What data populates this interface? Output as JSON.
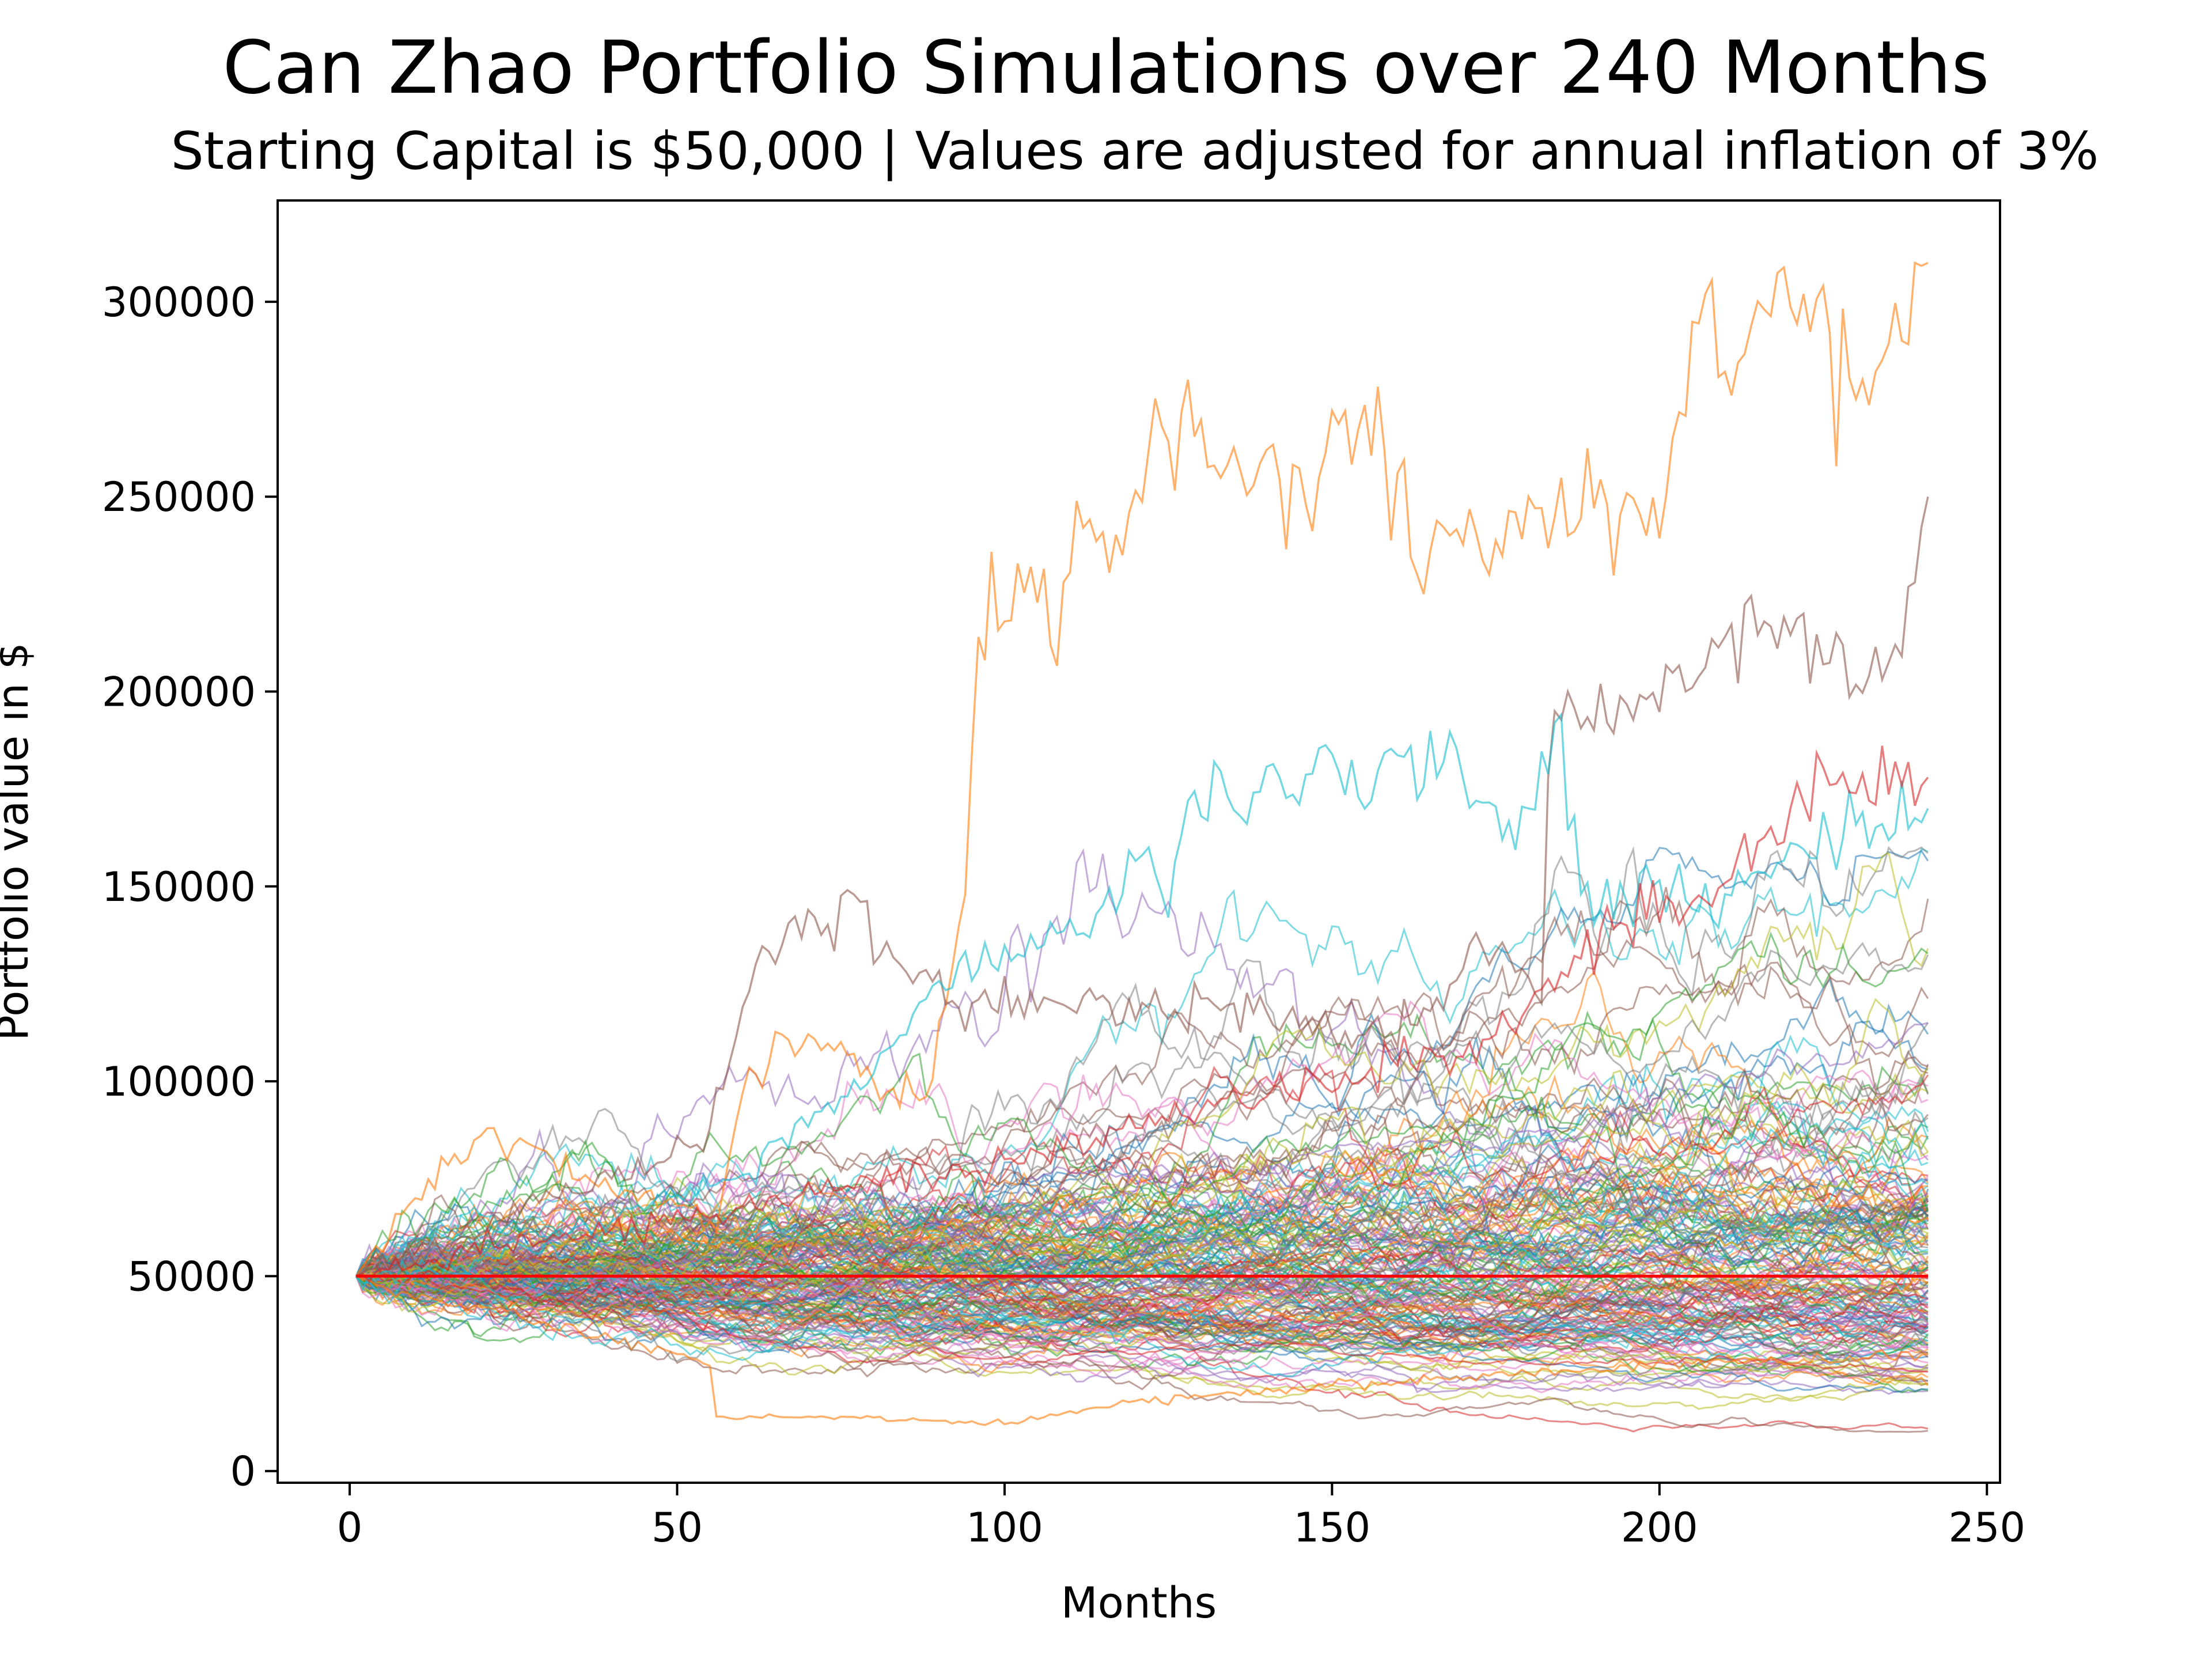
{
  "chart_data": {
    "type": "line",
    "title": "Can Zhao Portfolio Simulations over 240 Months",
    "subtitle": "Starting Capital is $50,000 | Values are adjusted for annual inflation of 3%",
    "xlabel": "Months",
    "ylabel": "Portfolio value in $",
    "xlim": [
      -11,
      252
    ],
    "ylim": [
      -3000,
      326000
    ],
    "x_ticks": [
      0,
      50,
      100,
      150,
      200,
      250
    ],
    "y_ticks": [
      0,
      50000,
      100000,
      150000,
      200000,
      250000,
      300000
    ],
    "x_tick_labels": [
      "0",
      "50",
      "100",
      "150",
      "200",
      "250"
    ],
    "y_tick_labels": [
      "0",
      "50000",
      "100000",
      "150000",
      "200000",
      "250000",
      "300000"
    ],
    "grid": false,
    "legend": "none",
    "start_value": 50000,
    "months": 240,
    "x_start": 1,
    "x_end": 241,
    "series_count": 200,
    "reference_line": {
      "y": 50000,
      "color": "#ff0000"
    },
    "series_colors": [
      "#1f77b4",
      "#ff7f0e",
      "#2ca02c",
      "#d62728",
      "#9467bd",
      "#8c564b",
      "#e377c2",
      "#7f7f7f",
      "#bcbd22",
      "#17becf"
    ],
    "highlighted_series": [
      {
        "color": "#ff7f0e",
        "points": [
          [
            1,
            50000
          ],
          [
            10,
            70000
          ],
          [
            20,
            86000
          ],
          [
            30,
            82000
          ],
          [
            40,
            72000
          ],
          [
            50,
            68000
          ],
          [
            56,
            62000
          ],
          [
            60,
            97000
          ],
          [
            66,
            112000
          ],
          [
            72,
            108000
          ],
          [
            80,
            100000
          ],
          [
            88,
            96000
          ],
          [
            94,
            148000
          ],
          [
            96,
            214000
          ],
          [
            100,
            218000
          ],
          [
            104,
            232000
          ],
          [
            107,
            212000
          ],
          [
            112,
            242000
          ],
          [
            118,
            235000
          ],
          [
            122,
            262000
          ],
          [
            128,
            280000
          ],
          [
            132,
            258000
          ],
          [
            140,
            262000
          ],
          [
            146,
            248000
          ],
          [
            152,
            272000
          ],
          [
            158,
            262000
          ],
          [
            163,
            230000
          ],
          [
            168,
            240000
          ],
          [
            174,
            230000
          ],
          [
            180,
            250000
          ],
          [
            186,
            240000
          ],
          [
            192,
            248000
          ],
          [
            198,
            240000
          ],
          [
            202,
            265000
          ],
          [
            207,
            302000
          ],
          [
            211,
            276000
          ],
          [
            216,
            298000
          ],
          [
            222,
            302000
          ],
          [
            226,
            292000
          ],
          [
            230,
            275000
          ],
          [
            234,
            285000
          ],
          [
            237,
            290000
          ],
          [
            239,
            310000
          ],
          [
            241,
            310000
          ]
        ]
      },
      {
        "color": "#ff7f0e",
        "points": [
          [
            1,
            50000
          ],
          [
            10,
            44000
          ],
          [
            20,
            42000
          ],
          [
            30,
            38000
          ],
          [
            40,
            34000
          ],
          [
            50,
            30000
          ],
          [
            55,
            27000
          ],
          [
            56,
            14000
          ],
          [
            70,
            14000
          ],
          [
            85,
            13000
          ],
          [
            100,
            12000
          ],
          [
            120,
            18000
          ],
          [
            150,
            22000
          ],
          [
            180,
            25000
          ],
          [
            210,
            28000
          ],
          [
            241,
            30000
          ]
        ]
      },
      {
        "color": "#8c564b",
        "points": [
          [
            1,
            50000
          ],
          [
            15,
            58000
          ],
          [
            30,
            72000
          ],
          [
            45,
            76000
          ],
          [
            55,
            88000
          ],
          [
            62,
            130000
          ],
          [
            70,
            144000
          ],
          [
            78,
            146000
          ],
          [
            85,
            128000
          ],
          [
            95,
            120000
          ],
          [
            105,
            118000
          ],
          [
            115,
            122000
          ],
          [
            125,
            116000
          ],
          [
            135,
            120000
          ],
          [
            145,
            114000
          ],
          [
            155,
            112000
          ],
          [
            165,
            118000
          ],
          [
            172,
            138000
          ],
          [
            178,
            128000
          ],
          [
            182,
            120000
          ],
          [
            183,
            178000
          ],
          [
            186,
            200000
          ],
          [
            192,
            192000
          ],
          [
            198,
            198000
          ],
          [
            204,
            200000
          ],
          [
            210,
            214000
          ],
          [
            216,
            218000
          ],
          [
            222,
            220000
          ],
          [
            228,
            212000
          ],
          [
            232,
            204000
          ],
          [
            236,
            212000
          ],
          [
            239,
            228000
          ],
          [
            241,
            250000
          ]
        ]
      },
      {
        "color": "#17becf",
        "points": [
          [
            1,
            50000
          ],
          [
            20,
            54000
          ],
          [
            40,
            64000
          ],
          [
            60,
            76000
          ],
          [
            75,
            96000
          ],
          [
            85,
            112000
          ],
          [
            92,
            124000
          ],
          [
            98,
            130000
          ],
          [
            105,
            134000
          ],
          [
            112,
            138000
          ],
          [
            118,
            148000
          ],
          [
            122,
            160000
          ],
          [
            125,
            142000
          ],
          [
            128,
            172000
          ],
          [
            132,
            182000
          ],
          [
            136,
            168000
          ],
          [
            142,
            178000
          ],
          [
            150,
            184000
          ],
          [
            156,
            172000
          ],
          [
            162,
            186000
          ],
          [
            166,
            178000
          ],
          [
            172,
            172000
          ],
          [
            176,
            162000
          ],
          [
            180,
            170000
          ],
          [
            184,
            192000
          ],
          [
            188,
            148000
          ],
          [
            195,
            146000
          ],
          [
            202,
            150000
          ],
          [
            210,
            148000
          ],
          [
            218,
            156000
          ],
          [
            226,
            162000
          ],
          [
            234,
            166000
          ],
          [
            241,
            170000
          ]
        ]
      },
      {
        "color": "#d62728",
        "points": [
          [
            1,
            50000
          ],
          [
            20,
            56000
          ],
          [
            40,
            62000
          ],
          [
            60,
            68000
          ],
          [
            80,
            74000
          ],
          [
            100,
            80000
          ],
          [
            120,
            88000
          ],
          [
            140,
            96000
          ],
          [
            160,
            104000
          ],
          [
            175,
            112000
          ],
          [
            185,
            128000
          ],
          [
            195,
            140000
          ],
          [
            205,
            146000
          ],
          [
            212,
            158000
          ],
          [
            220,
            170000
          ],
          [
            226,
            176000
          ],
          [
            232,
            172000
          ],
          [
            236,
            182000
          ],
          [
            241,
            178000
          ]
        ]
      }
    ]
  }
}
